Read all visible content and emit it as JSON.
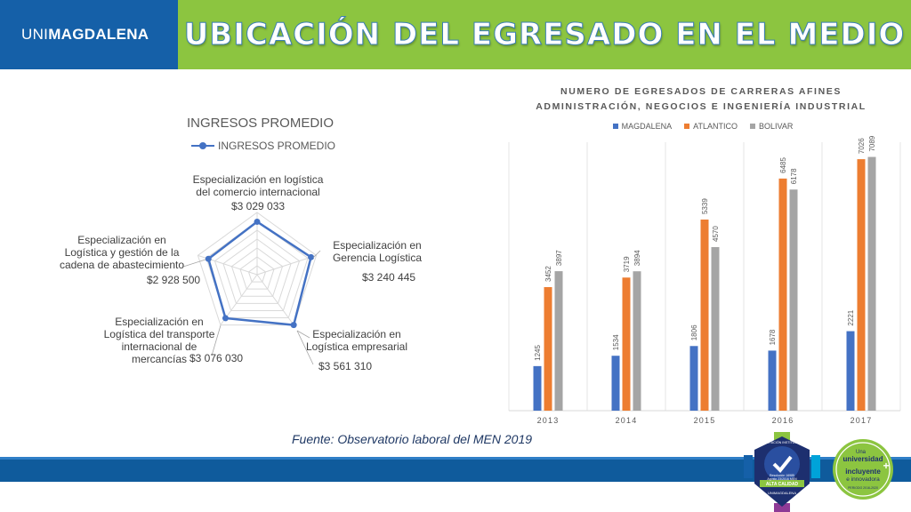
{
  "header": {
    "brand_prefix": "UNI",
    "brand_bold": "MAGDALENA",
    "title": "UBICACIÓN DEL EGRESADO EN EL MEDIO",
    "brand_color": "#1560a8",
    "title_band_color": "#8cc540"
  },
  "chart_data": [
    {
      "type": "radar",
      "title": "INGRESOS PROMEDIO",
      "legend": [
        "INGRESOS PROMEDIO"
      ],
      "series": [
        {
          "name": "INGRESOS PROMEDIO",
          "color": "#4472c4",
          "values": [
            3029033,
            3240445,
            3561310,
            3076030,
            2928500
          ]
        }
      ],
      "categories": [
        "Especialización en logística del comercio internacional",
        "Especialización en Gerencia Logística",
        "Especialización en Logística empresarial",
        "Especialización en Logística del transporte internacional de mercancías",
        "Especialización en Logística y gestión de la cadena de abastecimiento"
      ],
      "category_lines": [
        [
          "Especialización en logística",
          "del comercio internacional"
        ],
        [
          "Especialización en",
          "Gerencia Logística"
        ],
        [
          "Especialización en",
          "Logística empresarial"
        ],
        [
          "Especialización en",
          "Logística del transporte",
          "internacional de",
          "mercancías"
        ],
        [
          "Especialización en",
          "Logística y gestión de la",
          "cadena de abastecimiento"
        ]
      ],
      "value_labels": [
        "$3 029 033",
        "$3 240 445",
        "$3 561 310",
        "$3 076 030",
        "$2 928 500"
      ],
      "rmax": 3561310
    },
    {
      "type": "bar",
      "title_lines": [
        "NUMERO DE EGRESADOS DE CARRERAS AFINES",
        "ADMINISTRACIÓN, NEGOCIOS E INGENIERÍA INDUSTRIAL"
      ],
      "categories": [
        "2013",
        "2014",
        "2015",
        "2016",
        "2017"
      ],
      "series": [
        {
          "name": "MAGDALENA",
          "color": "#4472c4",
          "values": [
            1245,
            1534,
            1806,
            1678,
            2221
          ]
        },
        {
          "name": "ATLANTICO",
          "color": "#ed7d31",
          "values": [
            3452,
            3719,
            5339,
            6485,
            7026
          ]
        },
        {
          "name": "BOLIVAR",
          "color": "#a5a5a5",
          "values": [
            3897,
            3894,
            4570,
            6178,
            7089
          ]
        }
      ],
      "ylim": [
        0,
        7500
      ],
      "grid": true,
      "legend_position": "top"
    }
  ],
  "source": "Fuente: Observatorio laboral del MEN 2019",
  "badges": {
    "accreditation": {
      "title": "ACREDITACIÓN INSTITUCIONAL",
      "line1": "Resolución 16985",
      "line2": "Agosto 23/2016 MEN",
      "quality": "ALTA CALIDAD",
      "org": "UNIMAGDALENA"
    },
    "slogan": {
      "line1": "Una",
      "line2": "universidad",
      "line3": "incluyente",
      "line4": "e innovadora",
      "period": "PERIODO 2016-2020"
    }
  },
  "bottom_band_color": "#0f5b9c"
}
